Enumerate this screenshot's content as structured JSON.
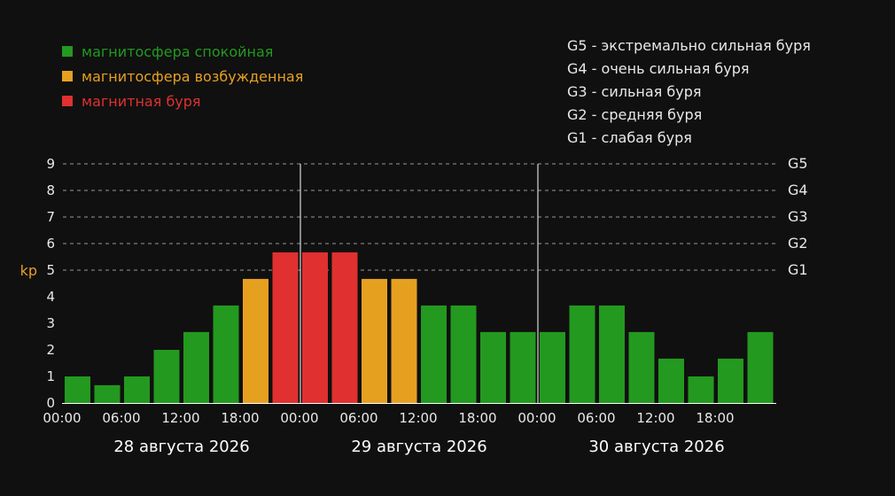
{
  "legend": {
    "quiet": {
      "label": "магнитосфера спокойная",
      "color": "#23991f"
    },
    "active": {
      "label": "магнитосфера возбужденная",
      "color": "#e6a020"
    },
    "storm": {
      "label": "магнитная буря",
      "color": "#e03030"
    }
  },
  "storm_levels": [
    "G5 - экстремально сильная буря",
    "G4 - очень сильная буря",
    "G3 - сильная буря",
    "G2 - средняя буря",
    "G1 - слабая буря"
  ],
  "chart_data": {
    "type": "bar",
    "ylabel": "kp",
    "ylim": [
      0,
      9
    ],
    "yticks": [
      "0",
      "1",
      "2",
      "3",
      "4",
      "5",
      "6",
      "7",
      "8",
      "9"
    ],
    "right_ticks": [
      {
        "label": "G1",
        "y": 5
      },
      {
        "label": "G2",
        "y": 6
      },
      {
        "label": "G3",
        "y": 7
      },
      {
        "label": "G4",
        "y": 8
      },
      {
        "label": "G5",
        "y": 9
      }
    ],
    "time_ticks": [
      "00:00",
      "06:00",
      "12:00",
      "18:00",
      "00:00",
      "06:00",
      "12:00",
      "18:00",
      "00:00",
      "06:00",
      "12:00",
      "18:00"
    ],
    "days": [
      "28 августа 2026",
      "29 августа 2026",
      "30 августа 2026"
    ],
    "values": [
      1,
      0.67,
      1,
      2,
      2.67,
      3.67,
      4.67,
      5.67,
      5.67,
      5.67,
      4.67,
      4.67,
      3.67,
      3.67,
      2.67,
      2.67,
      2.67,
      3.67,
      3.67,
      2.67,
      1.67,
      1,
      1.67,
      2.67
    ],
    "levels": [
      "quiet",
      "quiet",
      "quiet",
      "quiet",
      "quiet",
      "quiet",
      "active",
      "storm",
      "storm",
      "storm",
      "active",
      "active",
      "quiet",
      "quiet",
      "quiet",
      "quiet",
      "quiet",
      "quiet",
      "quiet",
      "quiet",
      "quiet",
      "quiet",
      "quiet",
      "quiet"
    ],
    "grid": true,
    "colors": {
      "axis_text": "#e8e8e8",
      "kp_label": "#e6a020",
      "grid": "#bbbbbb",
      "bg": "#101010"
    }
  }
}
